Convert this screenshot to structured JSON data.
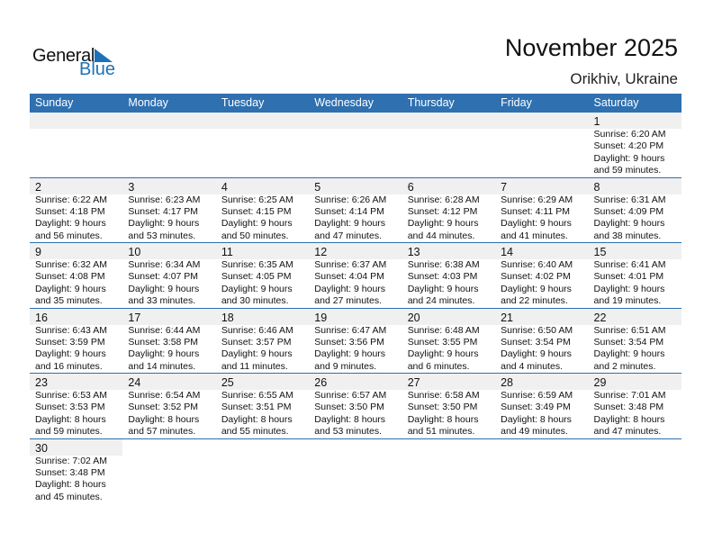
{
  "logo": {
    "line1": "General",
    "line2": "Blue"
  },
  "header": {
    "title": "November 2025",
    "location": "Orikhiv, Ukraine"
  },
  "colors": {
    "accent": "#2e70b0",
    "date_strip": "#f0f0f0",
    "logo_blue": "#1c72b8"
  },
  "weekdays": [
    "Sunday",
    "Monday",
    "Tuesday",
    "Wednesday",
    "Thursday",
    "Friday",
    "Saturday"
  ],
  "weeks": [
    [
      null,
      null,
      null,
      null,
      null,
      null,
      {
        "day": "1",
        "sunrise": "Sunrise: 6:20 AM",
        "sunset": "Sunset: 4:20 PM",
        "daylight1": "Daylight: 9 hours",
        "daylight2": "and 59 minutes."
      }
    ],
    [
      {
        "day": "2",
        "sunrise": "Sunrise: 6:22 AM",
        "sunset": "Sunset: 4:18 PM",
        "daylight1": "Daylight: 9 hours",
        "daylight2": "and 56 minutes."
      },
      {
        "day": "3",
        "sunrise": "Sunrise: 6:23 AM",
        "sunset": "Sunset: 4:17 PM",
        "daylight1": "Daylight: 9 hours",
        "daylight2": "and 53 minutes."
      },
      {
        "day": "4",
        "sunrise": "Sunrise: 6:25 AM",
        "sunset": "Sunset: 4:15 PM",
        "daylight1": "Daylight: 9 hours",
        "daylight2": "and 50 minutes."
      },
      {
        "day": "5",
        "sunrise": "Sunrise: 6:26 AM",
        "sunset": "Sunset: 4:14 PM",
        "daylight1": "Daylight: 9 hours",
        "daylight2": "and 47 minutes."
      },
      {
        "day": "6",
        "sunrise": "Sunrise: 6:28 AM",
        "sunset": "Sunset: 4:12 PM",
        "daylight1": "Daylight: 9 hours",
        "daylight2": "and 44 minutes."
      },
      {
        "day": "7",
        "sunrise": "Sunrise: 6:29 AM",
        "sunset": "Sunset: 4:11 PM",
        "daylight1": "Daylight: 9 hours",
        "daylight2": "and 41 minutes."
      },
      {
        "day": "8",
        "sunrise": "Sunrise: 6:31 AM",
        "sunset": "Sunset: 4:09 PM",
        "daylight1": "Daylight: 9 hours",
        "daylight2": "and 38 minutes."
      }
    ],
    [
      {
        "day": "9",
        "sunrise": "Sunrise: 6:32 AM",
        "sunset": "Sunset: 4:08 PM",
        "daylight1": "Daylight: 9 hours",
        "daylight2": "and 35 minutes."
      },
      {
        "day": "10",
        "sunrise": "Sunrise: 6:34 AM",
        "sunset": "Sunset: 4:07 PM",
        "daylight1": "Daylight: 9 hours",
        "daylight2": "and 33 minutes."
      },
      {
        "day": "11",
        "sunrise": "Sunrise: 6:35 AM",
        "sunset": "Sunset: 4:05 PM",
        "daylight1": "Daylight: 9 hours",
        "daylight2": "and 30 minutes."
      },
      {
        "day": "12",
        "sunrise": "Sunrise: 6:37 AM",
        "sunset": "Sunset: 4:04 PM",
        "daylight1": "Daylight: 9 hours",
        "daylight2": "and 27 minutes."
      },
      {
        "day": "13",
        "sunrise": "Sunrise: 6:38 AM",
        "sunset": "Sunset: 4:03 PM",
        "daylight1": "Daylight: 9 hours",
        "daylight2": "and 24 minutes."
      },
      {
        "day": "14",
        "sunrise": "Sunrise: 6:40 AM",
        "sunset": "Sunset: 4:02 PM",
        "daylight1": "Daylight: 9 hours",
        "daylight2": "and 22 minutes."
      },
      {
        "day": "15",
        "sunrise": "Sunrise: 6:41 AM",
        "sunset": "Sunset: 4:01 PM",
        "daylight1": "Daylight: 9 hours",
        "daylight2": "and 19 minutes."
      }
    ],
    [
      {
        "day": "16",
        "sunrise": "Sunrise: 6:43 AM",
        "sunset": "Sunset: 3:59 PM",
        "daylight1": "Daylight: 9 hours",
        "daylight2": "and 16 minutes."
      },
      {
        "day": "17",
        "sunrise": "Sunrise: 6:44 AM",
        "sunset": "Sunset: 3:58 PM",
        "daylight1": "Daylight: 9 hours",
        "daylight2": "and 14 minutes."
      },
      {
        "day": "18",
        "sunrise": "Sunrise: 6:46 AM",
        "sunset": "Sunset: 3:57 PM",
        "daylight1": "Daylight: 9 hours",
        "daylight2": "and 11 minutes."
      },
      {
        "day": "19",
        "sunrise": "Sunrise: 6:47 AM",
        "sunset": "Sunset: 3:56 PM",
        "daylight1": "Daylight: 9 hours",
        "daylight2": "and 9 minutes."
      },
      {
        "day": "20",
        "sunrise": "Sunrise: 6:48 AM",
        "sunset": "Sunset: 3:55 PM",
        "daylight1": "Daylight: 9 hours",
        "daylight2": "and 6 minutes."
      },
      {
        "day": "21",
        "sunrise": "Sunrise: 6:50 AM",
        "sunset": "Sunset: 3:54 PM",
        "daylight1": "Daylight: 9 hours",
        "daylight2": "and 4 minutes."
      },
      {
        "day": "22",
        "sunrise": "Sunrise: 6:51 AM",
        "sunset": "Sunset: 3:54 PM",
        "daylight1": "Daylight: 9 hours",
        "daylight2": "and 2 minutes."
      }
    ],
    [
      {
        "day": "23",
        "sunrise": "Sunrise: 6:53 AM",
        "sunset": "Sunset: 3:53 PM",
        "daylight1": "Daylight: 8 hours",
        "daylight2": "and 59 minutes."
      },
      {
        "day": "24",
        "sunrise": "Sunrise: 6:54 AM",
        "sunset": "Sunset: 3:52 PM",
        "daylight1": "Daylight: 8 hours",
        "daylight2": "and 57 minutes."
      },
      {
        "day": "25",
        "sunrise": "Sunrise: 6:55 AM",
        "sunset": "Sunset: 3:51 PM",
        "daylight1": "Daylight: 8 hours",
        "daylight2": "and 55 minutes."
      },
      {
        "day": "26",
        "sunrise": "Sunrise: 6:57 AM",
        "sunset": "Sunset: 3:50 PM",
        "daylight1": "Daylight: 8 hours",
        "daylight2": "and 53 minutes."
      },
      {
        "day": "27",
        "sunrise": "Sunrise: 6:58 AM",
        "sunset": "Sunset: 3:50 PM",
        "daylight1": "Daylight: 8 hours",
        "daylight2": "and 51 minutes."
      },
      {
        "day": "28",
        "sunrise": "Sunrise: 6:59 AM",
        "sunset": "Sunset: 3:49 PM",
        "daylight1": "Daylight: 8 hours",
        "daylight2": "and 49 minutes."
      },
      {
        "day": "29",
        "sunrise": "Sunrise: 7:01 AM",
        "sunset": "Sunset: 3:48 PM",
        "daylight1": "Daylight: 8 hours",
        "daylight2": "and 47 minutes."
      }
    ],
    [
      {
        "day": "30",
        "sunrise": "Sunrise: 7:02 AM",
        "sunset": "Sunset: 3:48 PM",
        "daylight1": "Daylight: 8 hours",
        "daylight2": "and 45 minutes."
      },
      null,
      null,
      null,
      null,
      null,
      null
    ]
  ]
}
